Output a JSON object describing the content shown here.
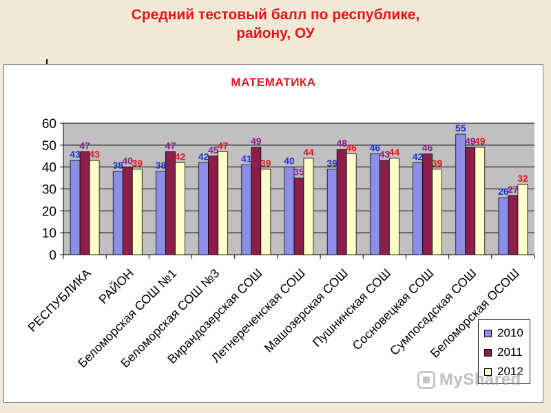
{
  "slide": {
    "title_line1": "Средний тестовый балл по республике,",
    "title_line2": "району, ОУ"
  },
  "watermark": {
    "text": "MyShared",
    "icon": "presentation-board-icon"
  },
  "colors": {
    "title_red": "#e8141c",
    "plot_bg": "#c0c0c0",
    "series": [
      "#8b8fe8",
      "#8b1e4a",
      "#ffffc8"
    ],
    "labels": [
      "#1f2fd8",
      "#8b1a8b",
      "#e8141c"
    ]
  },
  "chart_data": {
    "type": "bar",
    "title": "МАТЕМАТИКА",
    "xlabel": "",
    "ylabel": "",
    "ylim": [
      0,
      60
    ],
    "yticks": [
      0,
      10,
      20,
      30,
      40,
      50,
      60
    ],
    "grid": true,
    "legend_position": "bottom-right",
    "categories": [
      "РЕСПУБЛИКА",
      "РАЙОН",
      "Беломорская СОШ №1",
      "Беломорская СОШ №3",
      "Вирандозерская СОШ",
      "Летнереченская СОШ",
      "Машозерская СОШ",
      "Пушнинская СОШ",
      "Сосновецкая СОШ",
      "Сумпосадская СОШ",
      "Беломорская ОСОШ"
    ],
    "series": [
      {
        "name": "2010",
        "values": [
          43,
          38,
          38,
          42,
          41,
          40,
          39,
          46,
          42,
          55,
          26
        ]
      },
      {
        "name": "2011",
        "values": [
          47,
          40,
          47,
          45,
          49,
          35,
          48,
          43,
          46,
          49,
          27
        ]
      },
      {
        "name": "2012",
        "values": [
          43,
          39,
          42,
          47,
          39,
          44,
          46,
          44,
          39,
          49,
          32
        ]
      }
    ]
  }
}
